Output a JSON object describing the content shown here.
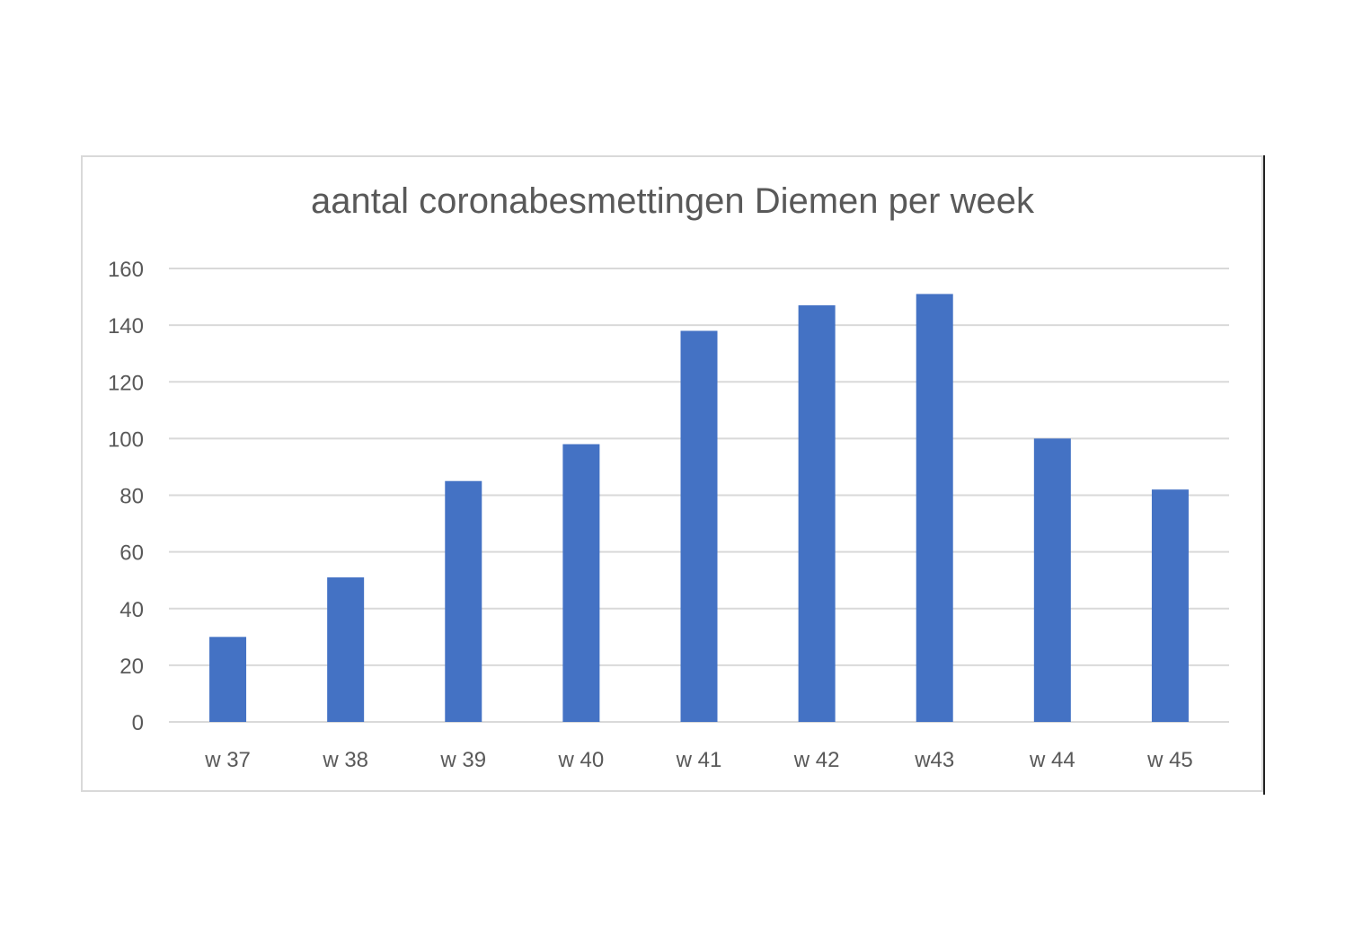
{
  "chart_data": {
    "type": "bar",
    "title": "aantal coronabesmettingen Diemen per week",
    "categories": [
      "w 37",
      "w 38",
      "w 39",
      "w 40",
      "w 41",
      "w 42",
      "w43",
      "w 44",
      "w 45"
    ],
    "values": [
      30,
      51,
      85,
      98,
      138,
      147,
      151,
      100,
      82
    ],
    "ylim": [
      0,
      160
    ],
    "yticks": [
      "0",
      "20",
      "40",
      "60",
      "80",
      "100",
      "120",
      "140",
      "160"
    ],
    "grid": true,
    "legend": "none",
    "colors": {
      "bar": "#4472C4",
      "grid": "#d9d9d9",
      "text": "#595959"
    }
  }
}
